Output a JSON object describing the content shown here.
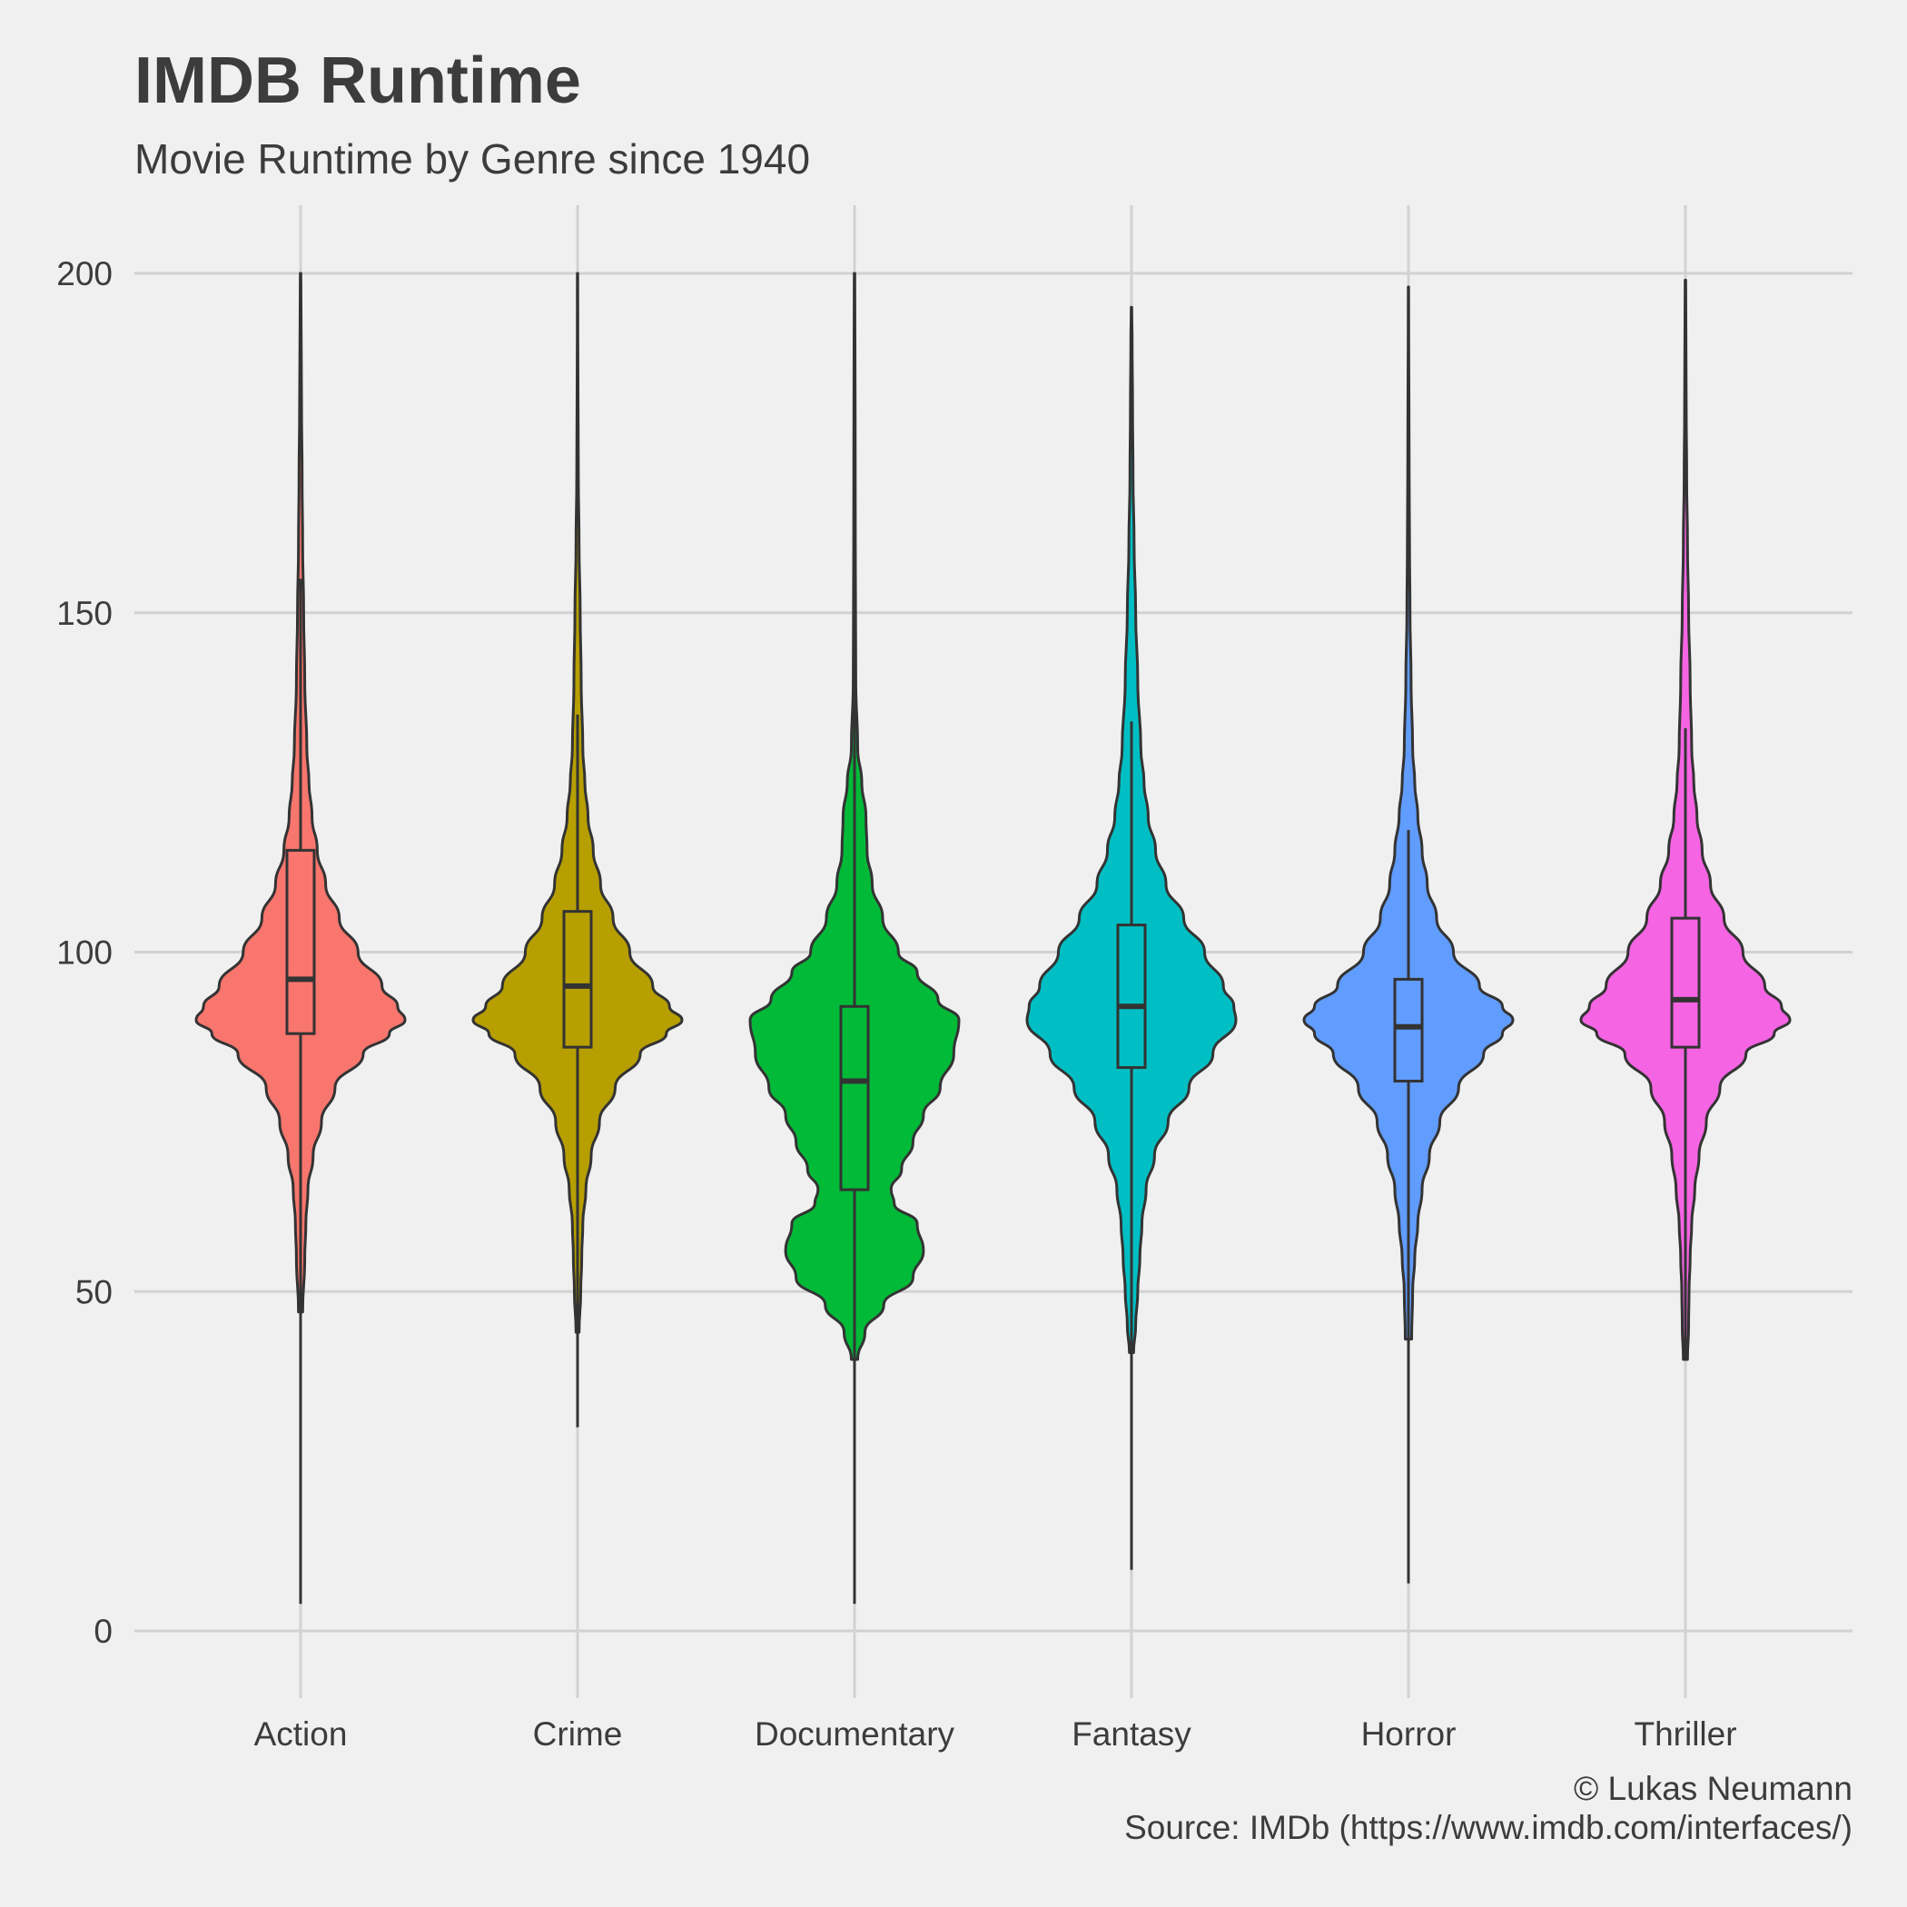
{
  "chart_data": {
    "type": "violin",
    "title": "IMDB Runtime",
    "subtitle": "Movie Runtime by Genre since 1940",
    "caption": [
      "© Lukas Neumann",
      "Source: IMDb (https://www.imdb.com/interfaces/)"
    ],
    "xlabel": "",
    "ylabel": "",
    "ylim": [
      0,
      200
    ],
    "yticks": [
      0,
      50,
      100,
      150,
      200
    ],
    "grid": true,
    "legend": "none",
    "categories": [
      "Action",
      "Crime",
      "Documentary",
      "Fantasy",
      "Horror",
      "Thriller"
    ],
    "series": [
      {
        "category": "Action",
        "color": "#f8766d",
        "box": {
          "whisker_low": 4,
          "q1": 88,
          "median": 96,
          "q3": 115,
          "whisker_high": 155
        },
        "violin_range": [
          47,
          200
        ],
        "density": [
          [
            47,
            0.02
          ],
          [
            55,
            0.04
          ],
          [
            60,
            0.05
          ],
          [
            65,
            0.07
          ],
          [
            70,
            0.12
          ],
          [
            75,
            0.2
          ],
          [
            80,
            0.33
          ],
          [
            85,
            0.6
          ],
          [
            88,
            0.85
          ],
          [
            90,
            1.0
          ],
          [
            92,
            0.93
          ],
          [
            95,
            0.78
          ],
          [
            100,
            0.55
          ],
          [
            105,
            0.37
          ],
          [
            110,
            0.24
          ],
          [
            115,
            0.16
          ],
          [
            120,
            0.11
          ],
          [
            125,
            0.08
          ],
          [
            130,
            0.06
          ],
          [
            140,
            0.04
          ],
          [
            150,
            0.03
          ],
          [
            160,
            0.02
          ],
          [
            170,
            0.015
          ],
          [
            180,
            0.01
          ],
          [
            190,
            0.006
          ],
          [
            200,
            0.003
          ]
        ]
      },
      {
        "category": "Crime",
        "color": "#b79f00",
        "box": {
          "whisker_low": 30,
          "q1": 86,
          "median": 95,
          "q3": 106,
          "whisker_high": 135
        },
        "violin_range": [
          44,
          200
        ],
        "density": [
          [
            44,
            0.015
          ],
          [
            50,
            0.03
          ],
          [
            55,
            0.04
          ],
          [
            60,
            0.05
          ],
          [
            65,
            0.08
          ],
          [
            70,
            0.13
          ],
          [
            75,
            0.21
          ],
          [
            80,
            0.36
          ],
          [
            85,
            0.6
          ],
          [
            88,
            0.85
          ],
          [
            90,
            1.0
          ],
          [
            92,
            0.88
          ],
          [
            95,
            0.72
          ],
          [
            100,
            0.5
          ],
          [
            105,
            0.34
          ],
          [
            110,
            0.22
          ],
          [
            115,
            0.15
          ],
          [
            120,
            0.1
          ],
          [
            125,
            0.07
          ],
          [
            130,
            0.05
          ],
          [
            140,
            0.035
          ],
          [
            150,
            0.025
          ],
          [
            160,
            0.015
          ],
          [
            170,
            0.008
          ],
          [
            180,
            0.005
          ],
          [
            190,
            0.003
          ],
          [
            200,
            0.002
          ]
        ]
      },
      {
        "category": "Documentary",
        "color": "#00ba38",
        "box": {
          "whisker_low": 4,
          "q1": 65,
          "median": 81,
          "q3": 92,
          "whisker_high": 200
        },
        "violin_range": [
          40,
          200
        ],
        "density": [
          [
            40,
            0.03
          ],
          [
            44,
            0.1
          ],
          [
            48,
            0.28
          ],
          [
            52,
            0.56
          ],
          [
            56,
            0.66
          ],
          [
            60,
            0.6
          ],
          [
            63,
            0.38
          ],
          [
            65,
            0.35
          ],
          [
            68,
            0.45
          ],
          [
            72,
            0.56
          ],
          [
            76,
            0.66
          ],
          [
            80,
            0.82
          ],
          [
            85,
            0.95
          ],
          [
            90,
            1.0
          ],
          [
            93,
            0.8
          ],
          [
            97,
            0.6
          ],
          [
            100,
            0.42
          ],
          [
            105,
            0.27
          ],
          [
            110,
            0.17
          ],
          [
            115,
            0.12
          ],
          [
            120,
            0.11
          ],
          [
            125,
            0.07
          ],
          [
            130,
            0.03
          ],
          [
            140,
            0.012
          ],
          [
            160,
            0.008
          ],
          [
            180,
            0.006
          ],
          [
            200,
            0.003
          ]
        ]
      },
      {
        "category": "Fantasy",
        "color": "#00bfc4",
        "box": {
          "whisker_low": 9,
          "q1": 83,
          "median": 92,
          "q3": 104,
          "whisker_high": 134
        },
        "violin_range": [
          41,
          195
        ],
        "density": [
          [
            41,
            0.02
          ],
          [
            45,
            0.04
          ],
          [
            50,
            0.06
          ],
          [
            55,
            0.08
          ],
          [
            60,
            0.1
          ],
          [
            65,
            0.14
          ],
          [
            70,
            0.22
          ],
          [
            75,
            0.35
          ],
          [
            80,
            0.55
          ],
          [
            85,
            0.78
          ],
          [
            90,
            1.0
          ],
          [
            92,
            0.98
          ],
          [
            95,
            0.88
          ],
          [
            100,
            0.7
          ],
          [
            105,
            0.5
          ],
          [
            110,
            0.33
          ],
          [
            115,
            0.23
          ],
          [
            120,
            0.16
          ],
          [
            125,
            0.12
          ],
          [
            130,
            0.09
          ],
          [
            140,
            0.06
          ],
          [
            150,
            0.04
          ],
          [
            160,
            0.025
          ],
          [
            170,
            0.015
          ],
          [
            180,
            0.01
          ],
          [
            190,
            0.006
          ],
          [
            195,
            0.003
          ]
        ]
      },
      {
        "category": "Horror",
        "color": "#619cff",
        "box": {
          "whisker_low": 7,
          "q1": 81,
          "median": 89,
          "q3": 96,
          "whisker_high": 118
        },
        "violin_range": [
          43,
          198
        ],
        "density": [
          [
            43,
            0.03
          ],
          [
            50,
            0.04
          ],
          [
            55,
            0.06
          ],
          [
            60,
            0.09
          ],
          [
            65,
            0.13
          ],
          [
            70,
            0.2
          ],
          [
            75,
            0.3
          ],
          [
            80,
            0.48
          ],
          [
            85,
            0.72
          ],
          [
            88,
            0.9
          ],
          [
            90,
            1.0
          ],
          [
            92,
            0.9
          ],
          [
            95,
            0.68
          ],
          [
            100,
            0.43
          ],
          [
            105,
            0.27
          ],
          [
            110,
            0.18
          ],
          [
            115,
            0.13
          ],
          [
            120,
            0.09
          ],
          [
            125,
            0.06
          ],
          [
            130,
            0.04
          ],
          [
            140,
            0.025
          ],
          [
            150,
            0.015
          ],
          [
            160,
            0.01
          ],
          [
            170,
            0.007
          ],
          [
            180,
            0.005
          ],
          [
            190,
            0.003
          ],
          [
            198,
            0.002
          ]
        ]
      },
      {
        "category": "Thriller",
        "color": "#f564e3",
        "box": {
          "whisker_low": 40,
          "q1": 86,
          "median": 93,
          "q3": 105,
          "whisker_high": 133
        },
        "violin_range": [
          40,
          199
        ],
        "density": [
          [
            40,
            0.02
          ],
          [
            45,
            0.03
          ],
          [
            50,
            0.035
          ],
          [
            55,
            0.045
          ],
          [
            60,
            0.06
          ],
          [
            65,
            0.09
          ],
          [
            70,
            0.13
          ],
          [
            75,
            0.2
          ],
          [
            80,
            0.33
          ],
          [
            85,
            0.58
          ],
          [
            88,
            0.85
          ],
          [
            90,
            1.0
          ],
          [
            92,
            0.92
          ],
          [
            95,
            0.76
          ],
          [
            100,
            0.55
          ],
          [
            105,
            0.37
          ],
          [
            110,
            0.24
          ],
          [
            115,
            0.16
          ],
          [
            120,
            0.11
          ],
          [
            125,
            0.08
          ],
          [
            130,
            0.06
          ],
          [
            140,
            0.045
          ],
          [
            150,
            0.03
          ],
          [
            160,
            0.02
          ],
          [
            170,
            0.012
          ],
          [
            180,
            0.008
          ],
          [
            190,
            0.005
          ],
          [
            199,
            0.003
          ]
        ]
      }
    ]
  }
}
